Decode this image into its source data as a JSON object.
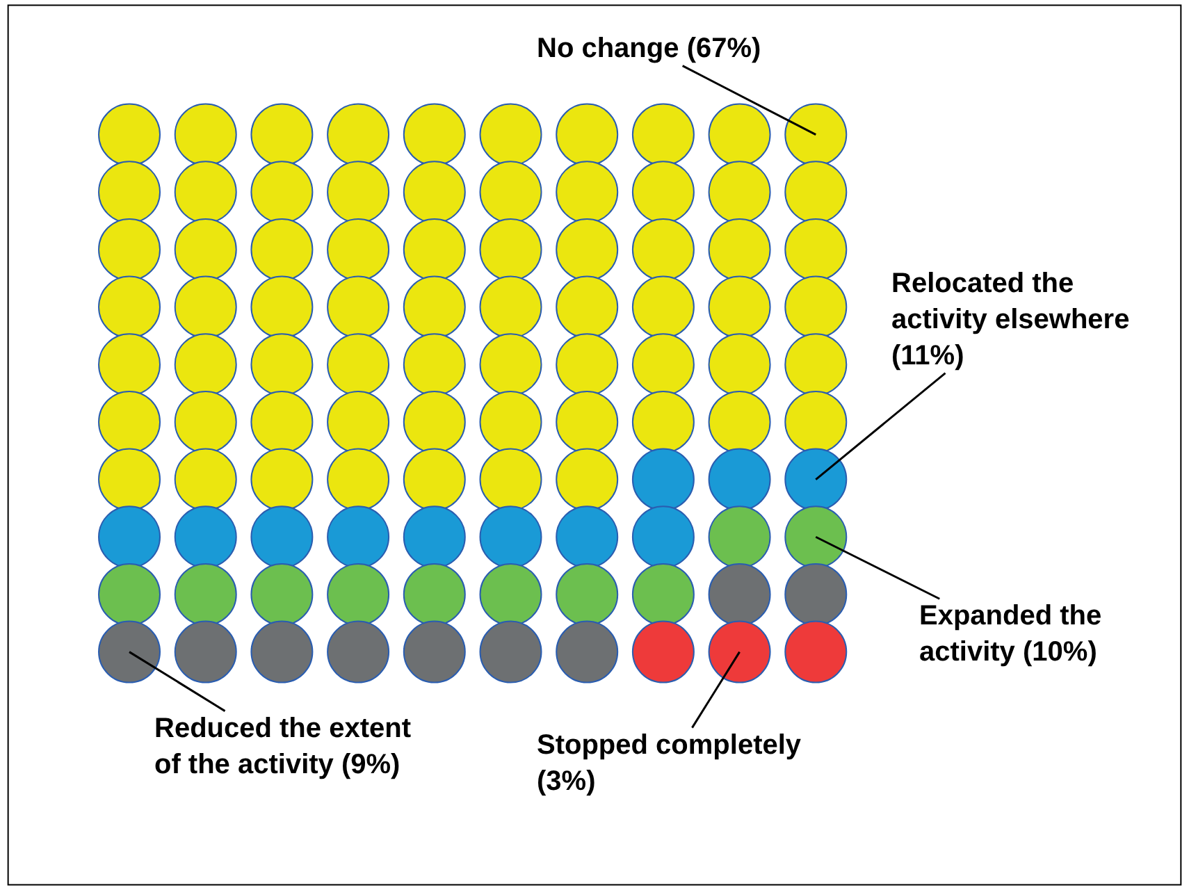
{
  "chart_data": {
    "type": "other",
    "categories": [
      "No change",
      "Relocated the activity elsewhere",
      "Expanded the activity",
      "Reduced the extent of the activity",
      "Stopped completely"
    ],
    "values": [
      67,
      11,
      10,
      9,
      3
    ],
    "value_labels": [
      "(67%)",
      "(11%)",
      "(10%)",
      "(9%)",
      "(3%)"
    ],
    "colors": [
      "#ebe60f",
      "#1a9ad6",
      "#6cbf4f",
      "#6d7072",
      "#ee3a3a"
    ]
  }
}
